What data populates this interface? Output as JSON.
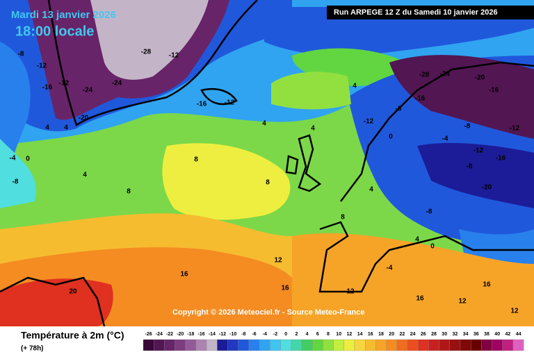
{
  "header": {
    "date": "Mardi 13 janvier 2026",
    "time": "18:00 locale",
    "run": "Run ARPEGE 12 Z du Samedi 10 janvier 2026"
  },
  "copyright": "Copyright © 2026 Meteociel.fr - Source Meteo-France",
  "legend": {
    "title": "Température à 2m (°C)",
    "lead": "(+ 78h)",
    "values": [
      -26,
      -24,
      -22,
      -20,
      -18,
      -16,
      -14,
      -12,
      -10,
      -8,
      -6,
      -4,
      -2,
      0,
      2,
      4,
      6,
      8,
      10,
      12,
      14,
      16,
      18,
      20,
      22,
      24,
      26,
      28,
      30,
      32,
      34,
      36,
      38,
      40,
      42,
      44
    ],
    "colors": [
      "#3a0838",
      "#521652",
      "#682468",
      "#7e3c80",
      "#945a98",
      "#ac84b0",
      "#c4b4c8",
      "#1c1c98",
      "#2238c0",
      "#2058dc",
      "#2880ec",
      "#30a4f0",
      "#40c4f0",
      "#50dede",
      "#44d6a8",
      "#44cc64",
      "#62d640",
      "#92e040",
      "#c2ee40",
      "#eeee40",
      "#f6d63e",
      "#f6bc30",
      "#f6a428",
      "#f48c22",
      "#f06c20",
      "#ea4e20",
      "#e03020",
      "#c82020",
      "#b01818",
      "#981010",
      "#800808",
      "#680000",
      "#800040",
      "#a00060",
      "#c02080",
      "#e060c0"
    ]
  },
  "map_labels": [
    "-8",
    "-12",
    "-16",
    "-12",
    "-20",
    "-24",
    "-24",
    "-28",
    "-12",
    "-16",
    "-12",
    "4",
    "4",
    "8",
    "4",
    "0",
    "-4",
    "-8",
    "4",
    "8",
    "4",
    "8",
    "12",
    "16",
    "16",
    "20",
    "-12",
    "-8",
    "-16",
    "-28",
    "-24",
    "-20",
    "-16",
    "-12",
    "-8",
    "-4",
    "-8",
    "-16",
    "-20",
    "-12",
    "-8",
    "4",
    "0",
    "4",
    "8",
    "12",
    "16",
    "12",
    "16",
    "12",
    "4",
    "-4",
    "0"
  ]
}
